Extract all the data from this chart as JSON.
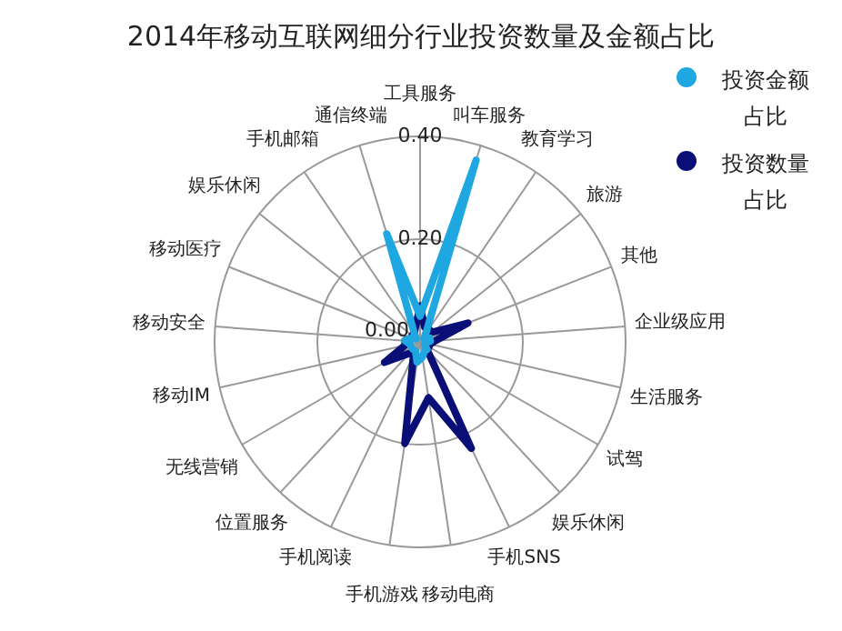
{
  "chart_data": {
    "type": "radar",
    "title": "2014年移动互联网细分行业投资数量及金额占比",
    "categories": [
      "工具服务",
      "叫车服务",
      "教育学习",
      "旅游",
      "其他",
      "企业级应用",
      "生活服务",
      "试驾",
      "娱乐休闲",
      "手机SNS",
      "移动电商",
      "手机游戏",
      "手机阅读",
      "位置服务",
      "无线营销",
      "移动IM",
      "移动安全",
      "移动医疗",
      "娱乐休闲",
      "手机邮箱",
      "通信终端"
    ],
    "series": [
      {
        "name": "投资金额占比",
        "color": "#1ea7e1",
        "values": [
          0.05,
          0.37,
          0.02,
          0.01,
          0.02,
          0.02,
          0.01,
          0.01,
          0.02,
          0.02,
          0.03,
          0.04,
          0.02,
          0.02,
          0.02,
          0.02,
          0.03,
          0.02,
          0.01,
          0.02,
          0.22
        ]
      },
      {
        "name": "投资数量占比",
        "color": "#0a0f78",
        "values": [
          0.07,
          0.03,
          0.03,
          0.03,
          0.1,
          0.03,
          0.02,
          0.02,
          0.02,
          0.23,
          0.11,
          0.2,
          0.03,
          0.03,
          0.08,
          0.03,
          0.03,
          0.02,
          0.02,
          0.02,
          0.03
        ]
      }
    ],
    "ylim": [
      0,
      0.4
    ],
    "yticks": [
      {
        "value": 0,
        "label": "0.00"
      },
      {
        "value": 0.2,
        "label": "0.20"
      },
      {
        "value": 0.4,
        "label": "0.40"
      }
    ],
    "grid": true,
    "legend": "top right",
    "marker": "none",
    "line_style": "solid"
  }
}
